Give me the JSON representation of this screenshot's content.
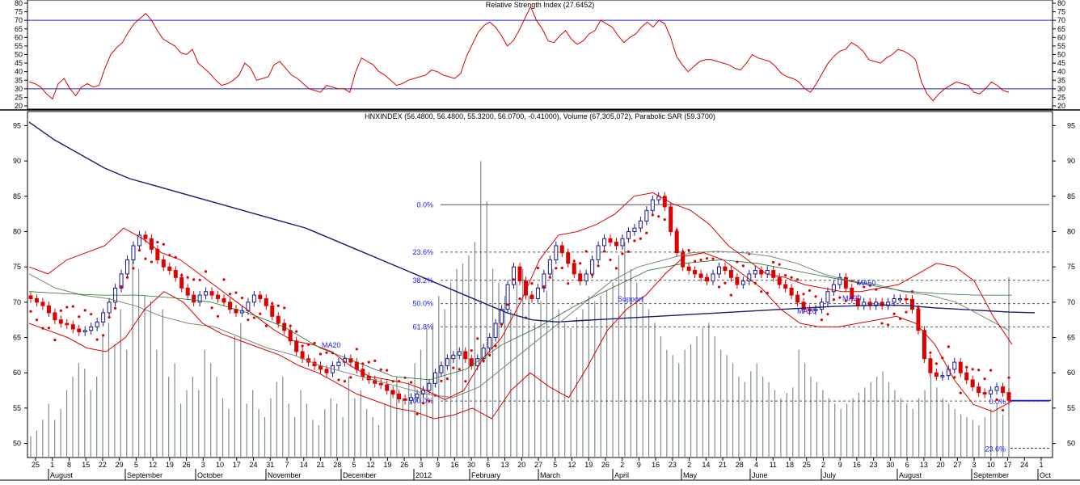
{
  "chart_data": [
    {
      "type": "line",
      "title": "Relative Strength Index (27.6452)",
      "ylim": [
        20,
        80
      ],
      "yticks": [
        20,
        25,
        30,
        35,
        40,
        45,
        50,
        55,
        60,
        65,
        70,
        75,
        80
      ],
      "reference_lines": [
        30,
        70
      ],
      "series": [
        {
          "name": "",
          "color": "#dd0000",
          "values": [
            34,
            33,
            31,
            27,
            24,
            33,
            36,
            30,
            26,
            31,
            33,
            31,
            32,
            42,
            50,
            54,
            57,
            63,
            68,
            71,
            74,
            70,
            64,
            59,
            57,
            55,
            51,
            50,
            53,
            45,
            42,
            39,
            35,
            32,
            33,
            35,
            38,
            45,
            42,
            35,
            36,
            37,
            44,
            46,
            42,
            38,
            36,
            33,
            30,
            29,
            28,
            32,
            31,
            30,
            30,
            28,
            40,
            48,
            46,
            44,
            40,
            38,
            35,
            32,
            33,
            35,
            36,
            37,
            38,
            41,
            40,
            38,
            37,
            36,
            39,
            49,
            56,
            63,
            67,
            69,
            66,
            61,
            55,
            58,
            64,
            71,
            78,
            70,
            65,
            58,
            57,
            61,
            64,
            59,
            56,
            58,
            62,
            64,
            70,
            68,
            66,
            61,
            57,
            60,
            62,
            66,
            69,
            66,
            70,
            68,
            60,
            49,
            44,
            40,
            43,
            46,
            47,
            47,
            46,
            45,
            44,
            42,
            41,
            45,
            50,
            48,
            47,
            46,
            43,
            39,
            37,
            36,
            34,
            30,
            28,
            33,
            39,
            45,
            49,
            52,
            53,
            57,
            55,
            52,
            47,
            46,
            45,
            48,
            50,
            53,
            52,
            50,
            47,
            34,
            27,
            23,
            27,
            30,
            32,
            34,
            33,
            32,
            28,
            27,
            30,
            34,
            32,
            29,
            28
          ]
        }
      ]
    },
    {
      "type": "line",
      "title": "HNXINDEX (56.4800, 56.4800, 55.3200, 56.0700, -0.41000), Volume (67,305,072), Parabolic SAR (59.3700)",
      "ylim": [
        48,
        97
      ],
      "yticks": [
        50,
        55,
        60,
        65,
        70,
        75,
        80,
        85,
        90,
        95
      ],
      "x_tick_labels": [
        "25",
        "1",
        "8",
        "15",
        "22",
        "29",
        "5",
        "12",
        "19",
        "26",
        "3",
        "10",
        "17",
        "24",
        "31",
        "7",
        "14",
        "21",
        "28",
        "5",
        "12",
        "19",
        "26",
        "3",
        "9",
        "16",
        "30",
        "6",
        "13",
        "20",
        "27",
        "5",
        "12",
        "19",
        "26",
        "2",
        "9",
        "16",
        "23",
        "2",
        "14",
        "21",
        "28",
        "4",
        "11",
        "18",
        "25",
        "2",
        "9",
        "16",
        "23",
        "30",
        "6",
        "13",
        "20",
        "27",
        "3",
        "10",
        "17",
        "24",
        "1"
      ],
      "x_tick_labels_red": [
        "1",
        "13"
      ],
      "month_labels": [
        "August",
        "September",
        "October",
        "November",
        "December",
        "2012",
        "February",
        "March",
        "April",
        "May",
        "June",
        "July",
        "August",
        "September",
        "Oct"
      ],
      "annotations": [
        "MA20",
        "MA20",
        "MA20",
        "MA50",
        "Support"
      ],
      "fibonacci": {
        "levels": [
          {
            "label": "0.0%",
            "value": 83.8
          },
          {
            "label": "23.6%",
            "value": 77.1
          },
          {
            "label": "38.2%",
            "value": 73.1
          },
          {
            "label": "50.0%",
            "value": 69.8
          },
          {
            "label": "61.8%",
            "value": 66.5
          },
          {
            "label": "100.0%",
            "value": 56.0
          }
        ],
        "levels2": [
          {
            "label": "0.0%",
            "value": 56.0
          },
          {
            "label": "23.6%",
            "value": 49.3
          }
        ]
      },
      "series": [
        {
          "name": "",
          "color": "#dd0000",
          "values": [
            70.5,
            70,
            69.5,
            68.5,
            67.5,
            67,
            66.8,
            66.2,
            65.8,
            66,
            66.5,
            67.2,
            68.5,
            70,
            72,
            74,
            76,
            78,
            79.5,
            79,
            77.5,
            76,
            75,
            74.5,
            73.5,
            72,
            71,
            70,
            71,
            71.5,
            71,
            70.5,
            70,
            69,
            68.5,
            68.8,
            70,
            71,
            70.5,
            69.5,
            68,
            67,
            66,
            64.5,
            63,
            62,
            61.5,
            61,
            60.5,
            60,
            61,
            61.5,
            62,
            61.5,
            60.5,
            59.5,
            59,
            58.5,
            58.3,
            57.5,
            57,
            56.3,
            56.1,
            56.5,
            57,
            57.5,
            58.5,
            60,
            61,
            62,
            62.5,
            63,
            62,
            61,
            62,
            63.5,
            65,
            67,
            69,
            72.5,
            75,
            73,
            71,
            70.5,
            72,
            74,
            76,
            78,
            77,
            75.5,
            74,
            73,
            74,
            76,
            78,
            79,
            78.5,
            78,
            79,
            80,
            80.5,
            81.5,
            83,
            84.5,
            85,
            83.5,
            80,
            77,
            75,
            74.5,
            74,
            73.5,
            73,
            74,
            75,
            74.5,
            73.5,
            72.5,
            73,
            74,
            74.5,
            74,
            74.5,
            73.5,
            72.5,
            72,
            71,
            70,
            69,
            68.8,
            69,
            70,
            71.5,
            72.5,
            73.5,
            72,
            70.5,
            69.5,
            70,
            69.5,
            70,
            69.5,
            70,
            70.5,
            70.5,
            70.4,
            69,
            66,
            62,
            60,
            59.5,
            59.6,
            60.5,
            61.5,
            60,
            59,
            58,
            57.2,
            57,
            57.5,
            58,
            57.2,
            56.1
          ]
        },
        {
          "name": "",
          "color": "#1a1a6e",
          "values": [
            95.5,
            93,
            91,
            89,
            87.5,
            86.5,
            85.5,
            84.5,
            83.5,
            82.5,
            81.5,
            80.5,
            79,
            77.5,
            76,
            74.5,
            73,
            71.5,
            70,
            68.5,
            67.5,
            67.2,
            67.4,
            67.6,
            67.8,
            68,
            68.2,
            68.4,
            68.6,
            68.8,
            69,
            69.2,
            69.4,
            69.5,
            69.6,
            69.5,
            69.2,
            69,
            68.8,
            68.6,
            68.5
          ]
        },
        {
          "name": "",
          "color": "#778877",
          "values": [
            74,
            72,
            71,
            70.5,
            69.5,
            68,
            67,
            66.5,
            65,
            63.5,
            62.5,
            61,
            60,
            59,
            58,
            57,
            56.5,
            58,
            61,
            64,
            67,
            70,
            73,
            75,
            76,
            77,
            77.2,
            77,
            76.5,
            75.5,
            74,
            73,
            72.5,
            71.5,
            71,
            70,
            68,
            66
          ]
        },
        {
          "name": "",
          "color": "#dd0000",
          "values": [
            75,
            74,
            76,
            77,
            78,
            80.5,
            79,
            77,
            76,
            74,
            72,
            70,
            68,
            66,
            64.5,
            64,
            63,
            61,
            59.5,
            59,
            58.5,
            57.5,
            56.2,
            57.5,
            62,
            65,
            70,
            76,
            79.5,
            80,
            81,
            82.5,
            85,
            85.5,
            84,
            83,
            81,
            78,
            76,
            74,
            73.5,
            72.5,
            72,
            71.5,
            71.5,
            72,
            72.5,
            74,
            75.5,
            75,
            73,
            68,
            64
          ]
        },
        {
          "name": "",
          "color": "#dd0000",
          "values": [
            67,
            66,
            65,
            63.5,
            63,
            65,
            69,
            71.5,
            70,
            67,
            65.5,
            64.5,
            63.5,
            62.5,
            61,
            60,
            58.5,
            57,
            56,
            55,
            54.5,
            53.5,
            54,
            55,
            53.5,
            57.5,
            60,
            58,
            56.5,
            61,
            66,
            69,
            71,
            74,
            76.5,
            77,
            76,
            74,
            72,
            69,
            67,
            66.5,
            66.5,
            67,
            67.5,
            68,
            67,
            64,
            59,
            55.5,
            54.5,
            56
          ]
        },
        {
          "name": "",
          "color": "#2a6a2a",
          "values": [
            71.5,
            71.2,
            71,
            71,
            70.6,
            70,
            68.5,
            66.5,
            63.5,
            61.5,
            59.5,
            59,
            60.5,
            64,
            66.5,
            69.5,
            72,
            74.5,
            75.5,
            76,
            75.5,
            74.5,
            73.5,
            72.5,
            71.6,
            71.2,
            71,
            71
          ]
        }
      ],
      "volume_ylim": [
        0,
        120000000
      ],
      "volume": [
        8,
        10,
        14,
        20,
        14,
        18,
        25,
        30,
        35,
        33,
        25,
        30,
        45,
        50,
        42,
        55,
        40,
        75,
        70,
        60,
        58,
        40,
        55,
        30,
        35,
        20,
        25,
        30,
        25,
        40,
        35,
        30,
        22,
        18,
        45,
        50,
        20,
        25,
        18,
        15,
        22,
        28,
        30,
        20,
        15,
        25,
        20,
        14,
        12,
        18,
        22,
        20,
        15,
        30,
        22,
        25,
        18,
        15,
        12,
        20,
        25,
        30,
        22,
        28,
        35,
        40,
        48,
        50,
        60,
        55,
        65,
        70,
        72,
        75,
        80,
        110,
        95,
        70,
        65,
        60,
        55,
        65,
        70,
        60,
        50,
        58,
        62,
        70,
        55,
        50,
        48,
        52,
        55,
        60,
        58,
        60,
        62,
        65,
        75,
        80,
        70,
        65,
        60,
        55,
        50,
        45,
        40,
        38,
        35,
        40,
        42,
        45,
        48,
        50,
        45,
        40,
        38,
        35,
        30,
        28,
        32,
        35,
        30,
        28,
        25,
        22,
        24,
        26,
        40,
        35,
        30,
        28,
        25,
        22,
        20,
        18,
        20,
        22,
        24,
        26,
        28,
        30,
        32,
        28,
        25,
        22,
        20,
        18,
        22,
        25,
        30,
        26,
        22,
        20,
        18,
        16,
        15,
        14,
        12,
        15,
        18,
        20,
        16,
        67
      ]
    }
  ]
}
